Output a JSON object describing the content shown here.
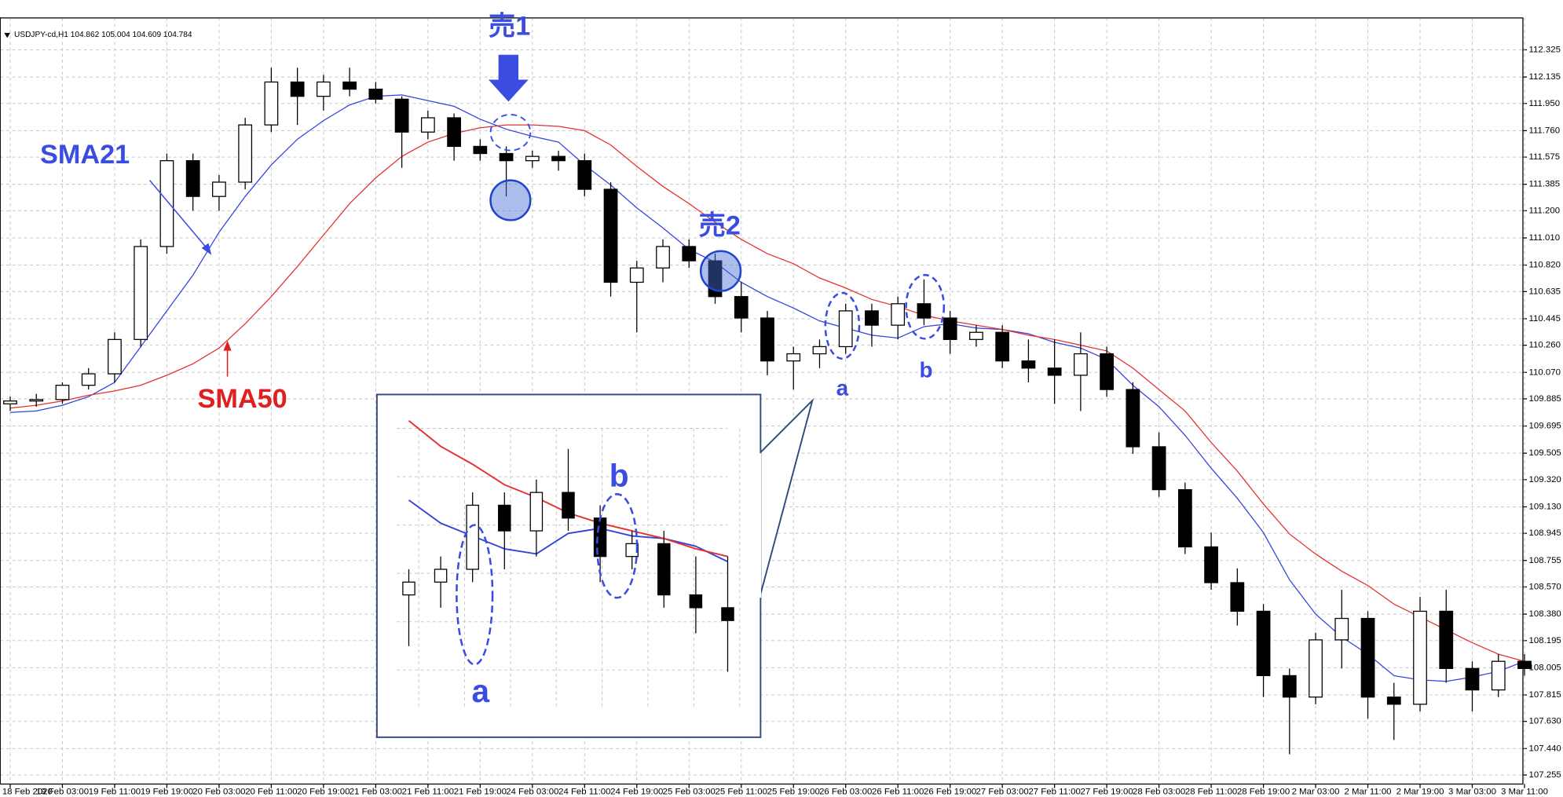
{
  "chart_data": {
    "type": "candlestick",
    "header": "USDJPY-cd,H1  104.862 105.004 104.609 104.784",
    "categories": [
      "18 Feb 2020",
      null,
      "19 Feb 03:00",
      null,
      "19 Feb 11:00",
      null,
      "19 Feb 19:00",
      null,
      "20 Feb 03:00",
      null,
      "20 Feb 11:00",
      null,
      "20 Feb 19:00",
      null,
      "21 Feb 03:00",
      null,
      "21 Feb 11:00",
      null,
      "21 Feb 19:00",
      null,
      "24 Feb 03:00",
      null,
      "24 Feb 11:00",
      null,
      "24 Feb 19:00",
      null,
      "25 Feb 03:00",
      null,
      "25 Feb 11:00",
      null,
      "25 Feb 19:00",
      null,
      "26 Feb 03:00",
      null,
      "26 Feb 11:00",
      null,
      "26 Feb 19:00",
      null,
      "27 Feb 03:00",
      null,
      "27 Feb 11:00",
      null,
      "27 Feb 19:00",
      null,
      "28 Feb 03:00",
      null,
      "28 Feb 11:00",
      null,
      "28 Feb 19:00",
      null,
      "2 Mar 03:00",
      null,
      "2 Mar 11:00",
      null,
      "2 Mar 19:00",
      null,
      "3 Mar 03:00",
      null,
      "3 Mar 11:00"
    ],
    "open": [
      109.85,
      109.87,
      109.88,
      109.98,
      110.06,
      110.3,
      110.95,
      111.55,
      111.3,
      111.4,
      111.8,
      112.1,
      112.0,
      112.1,
      112.05,
      111.98,
      111.75,
      111.85,
      111.65,
      111.6,
      111.55,
      111.58,
      111.55,
      111.35,
      110.7,
      110.8,
      110.95,
      110.85,
      110.6,
      110.45,
      110.15,
      110.2,
      110.25,
      110.5,
      110.4,
      110.55,
      110.45,
      110.3,
      110.35,
      110.15,
      110.1,
      110.05,
      110.2,
      109.95,
      109.55,
      109.25,
      108.85,
      108.6,
      108.4,
      107.95,
      107.8,
      108.2,
      108.35,
      107.8,
      107.75,
      108.4,
      108.0,
      107.85,
      108.05
    ],
    "high": [
      109.9,
      109.92,
      110.0,
      110.1,
      110.35,
      111.0,
      111.6,
      111.6,
      111.45,
      111.85,
      112.2,
      112.2,
      112.15,
      112.2,
      112.1,
      112.0,
      111.9,
      111.88,
      111.7,
      111.65,
      111.62,
      111.62,
      111.6,
      111.4,
      110.85,
      111.0,
      111.0,
      110.9,
      110.7,
      110.5,
      110.25,
      110.3,
      110.55,
      110.55,
      110.6,
      110.72,
      110.5,
      110.4,
      110.4,
      110.3,
      110.3,
      110.35,
      110.25,
      110.0,
      109.65,
      109.3,
      108.95,
      108.7,
      108.45,
      108.0,
      108.25,
      108.55,
      108.4,
      107.9,
      108.5,
      108.55,
      108.05,
      108.1,
      108.1
    ],
    "low": [
      109.8,
      109.83,
      109.85,
      109.95,
      110.0,
      110.25,
      110.9,
      111.2,
      111.2,
      111.35,
      111.75,
      111.8,
      111.9,
      112.0,
      111.95,
      111.5,
      111.7,
      111.55,
      111.55,
      111.3,
      111.5,
      111.48,
      111.3,
      110.6,
      110.35,
      110.7,
      110.8,
      110.55,
      110.35,
      110.05,
      109.95,
      110.1,
      110.2,
      110.25,
      110.3,
      110.4,
      110.2,
      110.25,
      110.1,
      110.0,
      109.85,
      109.8,
      109.9,
      109.5,
      109.2,
      108.8,
      108.55,
      108.3,
      107.8,
      107.4,
      107.75,
      108.0,
      107.65,
      107.5,
      107.7,
      107.9,
      107.7,
      107.8,
      107.95
    ],
    "close": [
      109.87,
      109.88,
      109.98,
      110.06,
      110.3,
      110.95,
      111.55,
      111.3,
      111.4,
      111.8,
      112.1,
      112.0,
      112.1,
      112.05,
      111.98,
      111.75,
      111.85,
      111.65,
      111.6,
      111.55,
      111.58,
      111.55,
      111.35,
      110.7,
      110.8,
      110.95,
      110.85,
      110.6,
      110.45,
      110.15,
      110.2,
      110.25,
      110.5,
      110.4,
      110.55,
      110.45,
      110.3,
      110.35,
      110.15,
      110.1,
      110.05,
      110.2,
      109.95,
      109.55,
      109.25,
      108.85,
      108.6,
      108.4,
      107.95,
      107.8,
      108.2,
      108.35,
      107.8,
      107.75,
      108.4,
      108.0,
      107.85,
      108.05,
      108.0
    ],
    "candle_colors": {
      "up": "#ffffff",
      "down": "#000000"
    },
    "lines": [
      {
        "name": "SMA21",
        "color": "#3344dd",
        "values": [
          109.79,
          109.8,
          109.84,
          109.9,
          110.0,
          110.25,
          110.5,
          110.75,
          111.05,
          111.3,
          111.52,
          111.7,
          111.83,
          111.94,
          112.0,
          112.01,
          111.97,
          111.93,
          111.84,
          111.77,
          111.72,
          111.68,
          111.52,
          111.38,
          111.22,
          111.08,
          110.93,
          110.84,
          110.7,
          110.6,
          110.52,
          110.43,
          110.38,
          110.33,
          110.31,
          110.39,
          110.41,
          110.38,
          110.37,
          110.34,
          110.28,
          110.24,
          110.16,
          109.98,
          109.83,
          109.63,
          109.4,
          109.19,
          108.95,
          108.62,
          108.38,
          108.22,
          108.1,
          107.95,
          107.92,
          107.91,
          107.94,
          107.98,
          108.05
        ]
      },
      {
        "name": "SMA50",
        "color": "#e53030",
        "values": [
          109.82,
          109.84,
          109.87,
          109.91,
          109.94,
          109.98,
          110.05,
          110.13,
          110.24,
          110.41,
          110.6,
          110.81,
          111.03,
          111.25,
          111.43,
          111.58,
          111.68,
          111.74,
          111.78,
          111.8,
          111.8,
          111.79,
          111.76,
          111.66,
          111.51,
          111.37,
          111.25,
          111.12,
          111.0,
          110.9,
          110.83,
          110.73,
          110.66,
          110.58,
          110.53,
          110.47,
          110.43,
          110.4,
          110.37,
          110.33,
          110.3,
          110.26,
          110.22,
          110.1,
          109.95,
          109.8,
          109.58,
          109.38,
          109.15,
          108.94,
          108.8,
          108.68,
          108.58,
          108.45,
          108.36,
          108.27,
          108.18,
          108.1,
          108.05
        ]
      }
    ],
    "ylim": [
      107.192,
      112.548
    ],
    "yticks": [
      112.325,
      112.135,
      {
        "value": 111.95,
        "label": "111.950"
      },
      {
        "value": 111.76,
        "label": "111.760"
      },
      111.575,
      111.385,
      {
        "value": 111.2,
        "label": "111.200"
      },
      {
        "value": 111.01,
        "label": "111.010"
      },
      {
        "value": 110.82,
        "label": "110.820"
      },
      110.635,
      110.445,
      {
        "value": 110.26,
        "label": "110.260"
      },
      {
        "value": 110.07,
        "label": "110.070"
      },
      109.885,
      109.695,
      109.505,
      {
        "value": 109.32,
        "label": "109.320"
      },
      {
        "value": 109.13,
        "label": "109.130"
      },
      108.945,
      108.755,
      {
        "value": 108.57,
        "label": "108.570"
      },
      {
        "value": 108.38,
        "label": "108.380"
      },
      108.195,
      108.005,
      107.815,
      {
        "value": 107.63,
        "label": "107.630"
      },
      {
        "value": 107.44,
        "label": "107.440"
      },
      107.255
    ],
    "grid": true,
    "annotations": [
      "売1",
      "売2",
      "a",
      "b"
    ]
  }
}
